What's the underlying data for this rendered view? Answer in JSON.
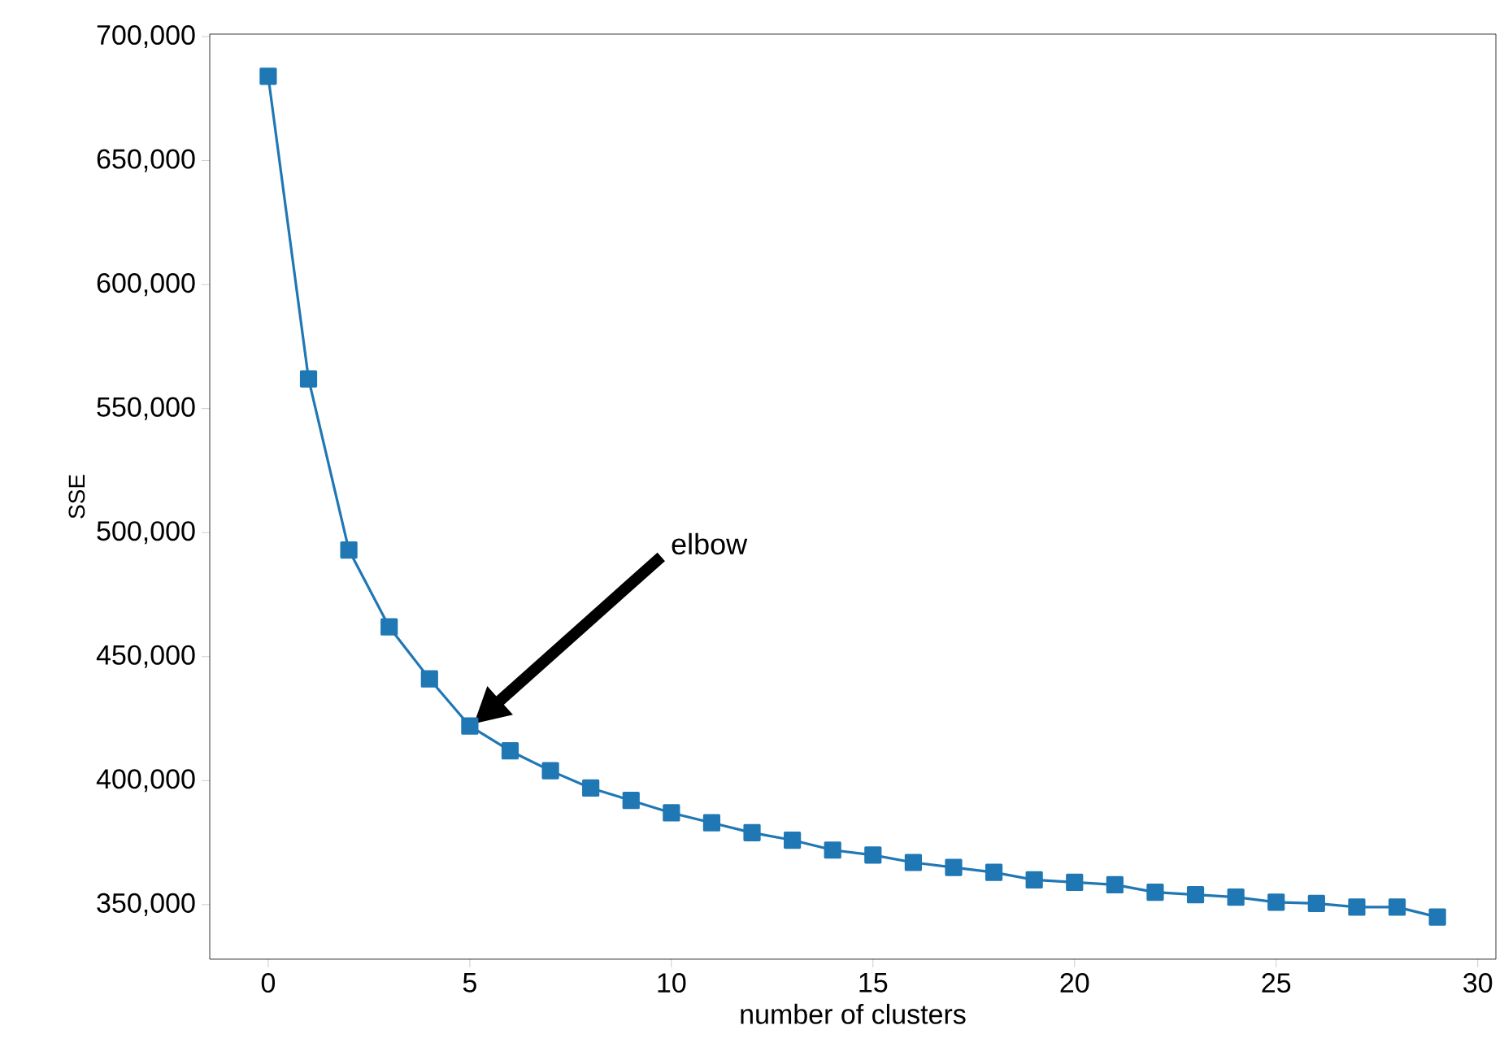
{
  "chart_data": {
    "type": "line",
    "xlabel": "number of clusters",
    "ylabel": "SSE",
    "x": [
      0,
      1,
      2,
      3,
      4,
      5,
      6,
      7,
      8,
      9,
      10,
      11,
      12,
      13,
      14,
      15,
      16,
      17,
      18,
      19,
      20,
      21,
      22,
      23,
      24,
      25,
      26,
      27,
      28,
      29
    ],
    "series": [
      {
        "color": "#1f77b4",
        "values": [
          684000,
          562000,
          493000,
          462000,
          441000,
          422000,
          412000,
          404000,
          397000,
          392000,
          387000,
          383000,
          379000,
          376000,
          372000,
          370000,
          367000,
          365000,
          363000,
          360000,
          359000,
          358000,
          355000,
          354000,
          353000,
          351000,
          350500,
          349000,
          349000,
          345000
        ]
      }
    ],
    "xlim": [
      -1.45,
      30.45
    ],
    "ylim": [
      328000,
      701000
    ],
    "xticks": [
      0,
      5,
      10,
      15,
      20,
      25,
      30
    ],
    "yticks": [
      {
        "value": 350000,
        "label": "350,000"
      },
      {
        "value": 400000,
        "label": "400,000"
      },
      {
        "value": 450000,
        "label": "450,000"
      },
      {
        "value": 500000,
        "label": "500,000"
      },
      {
        "value": 550000,
        "label": "550,000"
      },
      {
        "value": 600000,
        "label": "600,000"
      },
      {
        "value": 650000,
        "label": "650,000"
      },
      {
        "value": 700000,
        "label": "700,000"
      }
    ],
    "annotations": [
      "elbow"
    ],
    "marker": "square",
    "line_style": "solid",
    "grid": false
  }
}
